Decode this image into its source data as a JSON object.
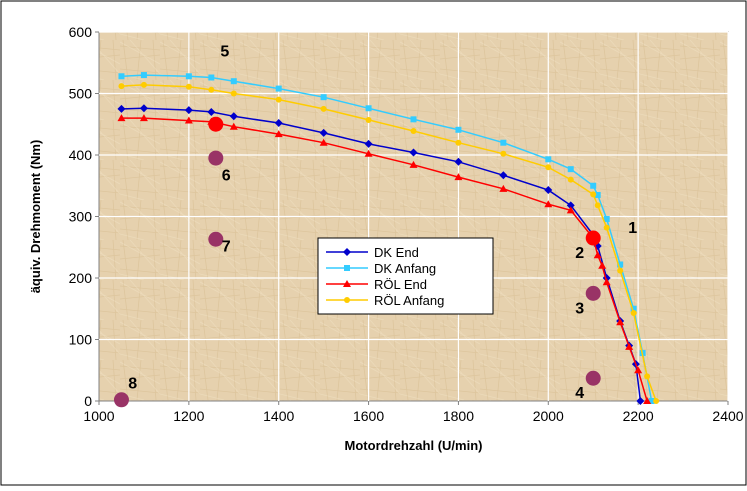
{
  "chart_data": {
    "type": "line",
    "title": "",
    "xlabel": "Motordrehzahl (U/min)",
    "ylabel": "äquiv. Drehmoment (Nm)",
    "xlim": [
      1000,
      2400
    ],
    "ylim": [
      0,
      600
    ],
    "xticks": [
      1000,
      1200,
      1400,
      1600,
      1800,
      2000,
      2200,
      2400
    ],
    "yticks": [
      0,
      100,
      200,
      300,
      400,
      500,
      600
    ],
    "grid": true,
    "legend_position": "center",
    "series": [
      {
        "name": "DK End",
        "color": "#0000cc",
        "marker": "diamond",
        "x": [
          1050,
          1100,
          1200,
          1250,
          1300,
          1400,
          1500,
          1600,
          1700,
          1800,
          1900,
          2000,
          2050,
          2100,
          2110,
          2130,
          2160,
          2180,
          2195,
          2205
        ],
        "y": [
          475,
          476,
          473,
          470,
          463,
          452,
          436,
          418,
          404,
          389,
          367,
          343,
          318,
          270,
          252,
          200,
          130,
          90,
          60,
          0
        ]
      },
      {
        "name": "DK Anfang",
        "color": "#33ccff",
        "marker": "square",
        "x": [
          1050,
          1100,
          1200,
          1250,
          1300,
          1400,
          1500,
          1600,
          1700,
          1800,
          1900,
          2000,
          2050,
          2100,
          2110,
          2130,
          2160,
          2190,
          2210,
          2230
        ],
        "y": [
          528,
          530,
          528,
          526,
          520,
          508,
          494,
          476,
          458,
          441,
          420,
          393,
          377,
          350,
          335,
          296,
          222,
          150,
          78,
          0
        ]
      },
      {
        "name": "RÖL End",
        "color": "#ff0000",
        "marker": "triangle",
        "x": [
          1050,
          1100,
          1200,
          1250,
          1300,
          1400,
          1500,
          1600,
          1700,
          1800,
          1900,
          2000,
          2050,
          2100,
          2110,
          2120,
          2130,
          2160,
          2180,
          2200,
          2220
        ],
        "y": [
          460,
          460,
          456,
          454,
          446,
          434,
          420,
          402,
          384,
          364,
          345,
          320,
          310,
          265,
          237,
          220,
          193,
          128,
          88,
          50,
          0
        ]
      },
      {
        "name": "RÖL Anfang",
        "color": "#ffcc00",
        "marker": "circle",
        "x": [
          1050,
          1100,
          1200,
          1250,
          1300,
          1400,
          1500,
          1600,
          1700,
          1800,
          1900,
          2000,
          2050,
          2100,
          2110,
          2130,
          2160,
          2190,
          2220,
          2240
        ],
        "y": [
          512,
          514,
          511,
          506,
          500,
          490,
          475,
          457,
          439,
          420,
          402,
          380,
          360,
          336,
          318,
          282,
          212,
          143,
          40,
          0
        ]
      }
    ],
    "operating_points": [
      {
        "label": "1",
        "x": 2100,
        "y": 265,
        "color": "#ff0000"
      },
      {
        "label": "2",
        "x": 2100,
        "y": 265,
        "color": "#ff0000"
      },
      {
        "label": "3",
        "x": 2100,
        "y": 175,
        "color": "#993366"
      },
      {
        "label": "4",
        "x": 2100,
        "y": 37,
        "color": "#993366"
      },
      {
        "label": "5",
        "x": 1260,
        "y": 450,
        "color": "#ff0000"
      },
      {
        "label": "6",
        "x": 1260,
        "y": 395,
        "color": "#993366"
      },
      {
        "label": "7",
        "x": 1260,
        "y": 263,
        "color": "#993366"
      },
      {
        "label": "8",
        "x": 1050,
        "y": 2,
        "color": "#993366"
      }
    ],
    "annotations": [
      {
        "text": "1",
        "x": 2188,
        "y": 283
      },
      {
        "text": "2",
        "x": 2070,
        "y": 242
      },
      {
        "text": "3",
        "x": 2070,
        "y": 152
      },
      {
        "text": "4",
        "x": 2070,
        "y": 15
      },
      {
        "text": "5",
        "x": 1280,
        "y": 570
      },
      {
        "text": "6",
        "x": 1283,
        "y": 368
      },
      {
        "text": "7",
        "x": 1283,
        "y": 253
      },
      {
        "text": "8",
        "x": 1075,
        "y": 30
      }
    ]
  }
}
